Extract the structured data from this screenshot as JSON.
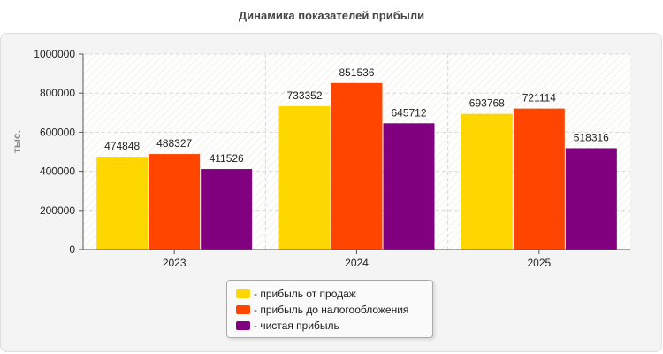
{
  "chart_data": {
    "type": "bar",
    "title": "Динамика показателей прибыли",
    "ylabel": "тыс.",
    "xlabel": "",
    "categories": [
      "2023",
      "2024",
      "2025"
    ],
    "ylim": [
      0,
      1000000
    ],
    "yticks": [
      0,
      200000,
      400000,
      600000,
      800000,
      1000000
    ],
    "grid": true,
    "legend_position": "bottom",
    "series": [
      {
        "name": "- прибыль от продаж",
        "color": "#FFD700",
        "values": [
          474848,
          733352,
          693768
        ]
      },
      {
        "name": "- прибыль до налогообложения",
        "color": "#FF4500",
        "values": [
          488327,
          851536,
          721114
        ]
      },
      {
        "name": "- чистая прибыль",
        "color": "#800080",
        "values": [
          411526,
          645712,
          518316
        ]
      }
    ]
  }
}
